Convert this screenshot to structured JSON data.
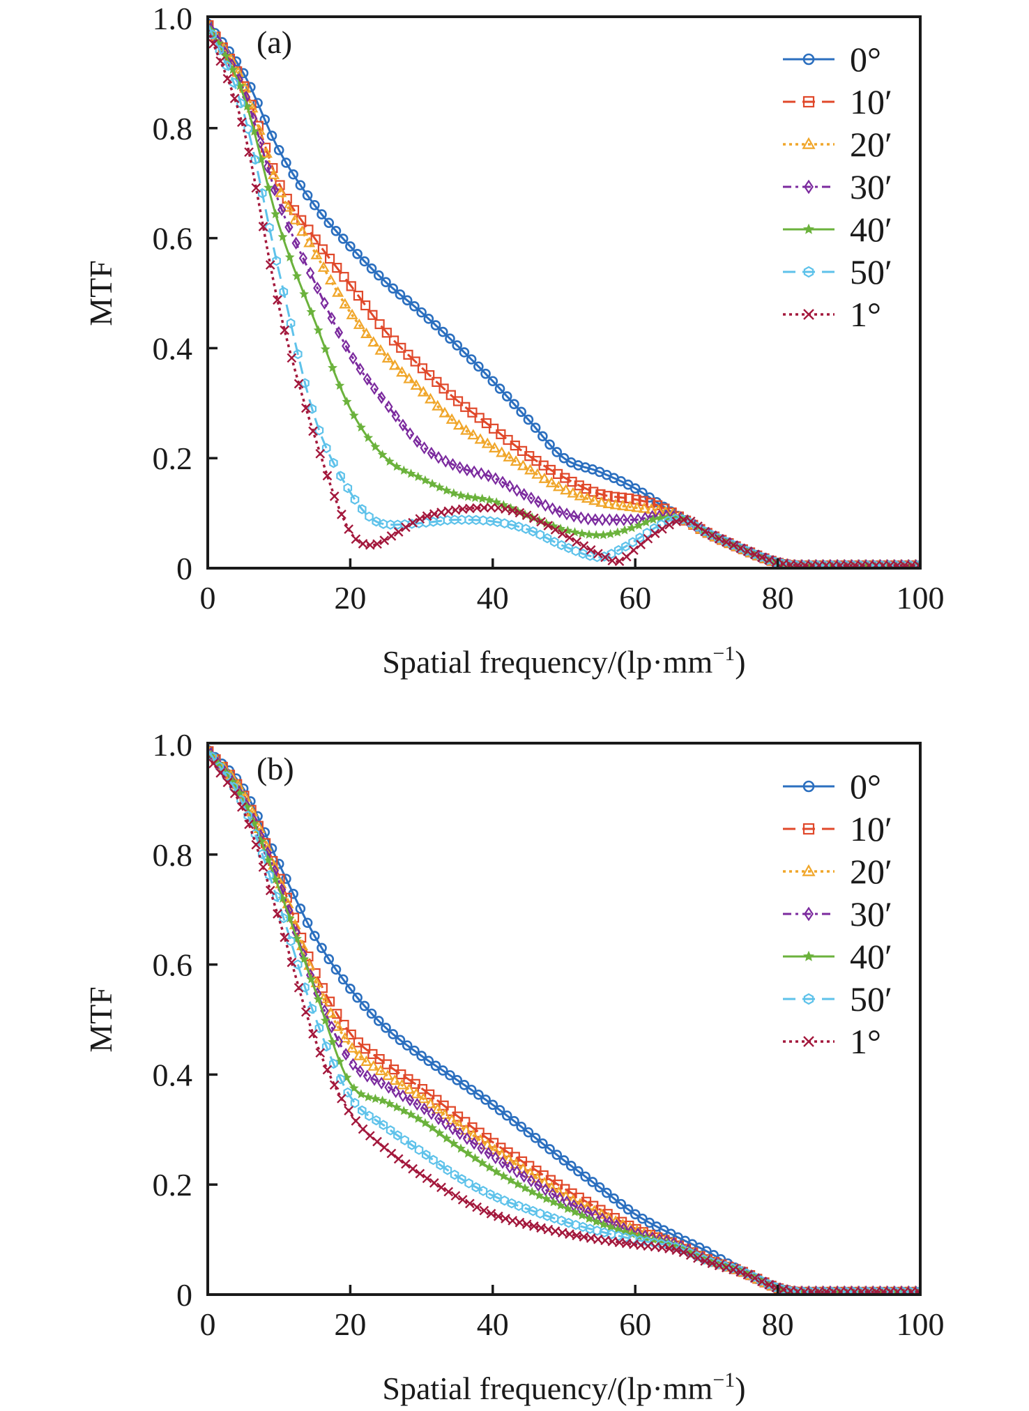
{
  "figure": {
    "panels": [
      "(a)",
      "(b)"
    ]
  },
  "chart_data": [
    {
      "type": "line",
      "panel_tag": "(a)",
      "title": "",
      "xlabel": "Spatial frequency/(lp·mm",
      "xlabel_sup": "−1",
      "xlabel_close": ")",
      "ylabel": "MTF",
      "xlim": [
        0,
        100
      ],
      "ylim": [
        0,
        1.0
      ],
      "xticks": [
        0,
        20,
        40,
        60,
        80,
        100
      ],
      "xtick_labels": [
        "0",
        "20",
        "40",
        "60",
        "80",
        "100"
      ],
      "yticks": [
        0,
        0.2,
        0.4,
        0.6,
        0.8,
        1.0
      ],
      "ytick_labels": [
        "0",
        "0.2",
        "0.4",
        "0.6",
        "0.8",
        "1.0"
      ],
      "grid": false,
      "legend_position": "top-right",
      "series": [
        {
          "name": "0°",
          "color": "#2b6fbf",
          "dash": "solid",
          "marker": "circle",
          "x": [
            0,
            5,
            10,
            15,
            20,
            25,
            30,
            35,
            40,
            45,
            50,
            55,
            60,
            63,
            66,
            70,
            75,
            80,
            83,
            90,
            100
          ],
          "y": [
            0.99,
            0.9,
            0.76,
            0.66,
            0.585,
            0.52,
            0.465,
            0.405,
            0.34,
            0.27,
            0.2,
            0.175,
            0.145,
            0.12,
            0.095,
            0.065,
            0.035,
            0.01,
            0.005,
            0.005,
            0.005
          ]
        },
        {
          "name": "10′",
          "color": "#e0482a",
          "dash": "dashed",
          "marker": "square",
          "x": [
            0,
            5,
            10,
            15,
            20,
            25,
            30,
            35,
            40,
            45,
            50,
            55,
            60,
            63,
            66,
            70,
            75,
            80,
            83,
            90,
            100
          ],
          "y": [
            0.99,
            0.88,
            0.7,
            0.6,
            0.515,
            0.43,
            0.365,
            0.305,
            0.255,
            0.205,
            0.165,
            0.135,
            0.125,
            0.115,
            0.095,
            0.065,
            0.035,
            0.01,
            0.005,
            0.005,
            0.005
          ]
        },
        {
          "name": "20′",
          "color": "#f0a62a",
          "dash": "dotted",
          "marker": "triangle",
          "x": [
            0,
            5,
            10,
            15,
            20,
            25,
            30,
            35,
            40,
            45,
            50,
            55,
            60,
            63,
            66,
            70,
            75,
            80,
            83,
            90,
            100
          ],
          "y": [
            0.99,
            0.88,
            0.69,
            0.575,
            0.465,
            0.385,
            0.323,
            0.262,
            0.22,
            0.18,
            0.143,
            0.12,
            0.11,
            0.105,
            0.095,
            0.065,
            0.035,
            0.01,
            0.005,
            0.005,
            0.005
          ]
        },
        {
          "name": "30′",
          "color": "#7b2a9e",
          "dash": "dashdot",
          "marker": "diamond",
          "x": [
            0,
            5,
            10,
            15,
            20,
            25,
            30,
            35,
            40,
            45,
            50,
            55,
            60,
            63,
            66,
            70,
            75,
            80,
            83,
            90,
            100
          ],
          "y": [
            0.99,
            0.87,
            0.665,
            0.52,
            0.39,
            0.3,
            0.223,
            0.185,
            0.165,
            0.13,
            0.1,
            0.088,
            0.088,
            0.095,
            0.093,
            0.065,
            0.035,
            0.01,
            0.005,
            0.005,
            0.005
          ]
        },
        {
          "name": "40′",
          "color": "#6bb23c",
          "dash": "solid",
          "marker": "star",
          "x": [
            0,
            5,
            10,
            15,
            20,
            25,
            30,
            35,
            40,
            45,
            50,
            55,
            60,
            63,
            66,
            70,
            75,
            80,
            83,
            90,
            100
          ],
          "y": [
            0.99,
            0.86,
            0.623,
            0.45,
            0.29,
            0.2,
            0.163,
            0.134,
            0.122,
            0.095,
            0.07,
            0.06,
            0.075,
            0.09,
            0.092,
            0.065,
            0.035,
            0.01,
            0.005,
            0.005,
            0.005
          ]
        },
        {
          "name": "50′",
          "color": "#5ec2ea",
          "dash": "dashed",
          "marker": "hexagon",
          "x": [
            0,
            5,
            10,
            15,
            20,
            23,
            26,
            30,
            35,
            40,
            45,
            50,
            55,
            58,
            60,
            63,
            66,
            70,
            75,
            80,
            83,
            90,
            100
          ],
          "y": [
            0.99,
            0.83,
            0.539,
            0.275,
            0.138,
            0.09,
            0.079,
            0.082,
            0.088,
            0.085,
            0.07,
            0.04,
            0.02,
            0.035,
            0.05,
            0.075,
            0.09,
            0.065,
            0.035,
            0.01,
            0.005,
            0.005,
            0.005
          ]
        },
        {
          "name": "1°",
          "color": "#a3183c",
          "dash": "dotted",
          "marker": "cross",
          "x": [
            0,
            5,
            10,
            15,
            20,
            23,
            26,
            30,
            35,
            40,
            45,
            50,
            55,
            57.5,
            60,
            63,
            67,
            70,
            75,
            80,
            83,
            90,
            100
          ],
          "y": [
            0.98,
            0.8,
            0.475,
            0.24,
            0.066,
            0.042,
            0.06,
            0.091,
            0.106,
            0.11,
            0.095,
            0.061,
            0.025,
            0.012,
            0.035,
            0.065,
            0.088,
            0.065,
            0.035,
            0.01,
            0.005,
            0.005,
            0.005
          ]
        }
      ]
    },
    {
      "type": "line",
      "panel_tag": "(b)",
      "title": "",
      "xlabel": "Spatial frequency/(lp·mm",
      "xlabel_sup": "−1",
      "xlabel_close": ")",
      "ylabel": "MTF",
      "xlim": [
        0,
        100
      ],
      "ylim": [
        0,
        1.0
      ],
      "xticks": [
        0,
        20,
        40,
        60,
        80,
        100
      ],
      "xtick_labels": [
        "0",
        "20",
        "40",
        "60",
        "80",
        "100"
      ],
      "yticks": [
        0,
        0.2,
        0.4,
        0.6,
        0.8,
        1.0
      ],
      "ytick_labels": [
        "0",
        "0.2",
        "0.4",
        "0.6",
        "0.8",
        "1.0"
      ],
      "grid": false,
      "legend_position": "top-right",
      "series": [
        {
          "name": "0°",
          "color": "#2b6fbf",
          "dash": "solid",
          "marker": "circle",
          "x": [
            0,
            5,
            10,
            15,
            20,
            25,
            30,
            35,
            40,
            45,
            50,
            55,
            60,
            66,
            70,
            75,
            80,
            83,
            90,
            100
          ],
          "y": [
            0.99,
            0.92,
            0.783,
            0.652,
            0.556,
            0.485,
            0.434,
            0.39,
            0.345,
            0.295,
            0.244,
            0.195,
            0.146,
            0.104,
            0.079,
            0.042,
            0.012,
            0.005,
            0.005,
            0.005
          ]
        },
        {
          "name": "10′",
          "color": "#e0482a",
          "dash": "dashed",
          "marker": "square",
          "x": [
            0,
            5,
            10,
            15,
            20,
            25,
            30,
            35,
            40,
            45,
            50,
            55,
            60,
            66,
            70,
            75,
            80,
            83,
            90,
            100
          ],
          "y": [
            0.99,
            0.91,
            0.76,
            0.588,
            0.475,
            0.42,
            0.375,
            0.325,
            0.277,
            0.235,
            0.193,
            0.155,
            0.12,
            0.09,
            0.065,
            0.042,
            0.012,
            0.005,
            0.005,
            0.005
          ]
        },
        {
          "name": "20′",
          "color": "#f0a62a",
          "dash": "dotted",
          "marker": "triangle",
          "x": [
            0,
            5,
            10,
            15,
            20,
            25,
            30,
            35,
            40,
            45,
            50,
            55,
            60,
            66,
            70,
            75,
            80,
            83,
            90,
            100
          ],
          "y": [
            0.99,
            0.91,
            0.755,
            0.574,
            0.452,
            0.4,
            0.358,
            0.31,
            0.265,
            0.222,
            0.18,
            0.147,
            0.117,
            0.09,
            0.064,
            0.042,
            0.012,
            0.005,
            0.005,
            0.005
          ]
        },
        {
          "name": "30′",
          "color": "#7b2a9e",
          "dash": "dashdot",
          "marker": "diamond",
          "x": [
            0,
            5,
            10,
            15,
            20,
            25,
            30,
            35,
            40,
            45,
            50,
            55,
            60,
            66,
            70,
            75,
            80,
            83,
            90,
            100
          ],
          "y": [
            0.99,
            0.9,
            0.75,
            0.56,
            0.425,
            0.38,
            0.341,
            0.296,
            0.252,
            0.21,
            0.171,
            0.14,
            0.112,
            0.09,
            0.063,
            0.042,
            0.012,
            0.005,
            0.005,
            0.005
          ]
        },
        {
          "name": "40′",
          "color": "#6bb23c",
          "dash": "solid",
          "marker": "star",
          "x": [
            0,
            5,
            10,
            15,
            20,
            25,
            30,
            35,
            40,
            45,
            50,
            55,
            60,
            66,
            70,
            75,
            80,
            83,
            90,
            100
          ],
          "y": [
            0.99,
            0.9,
            0.738,
            0.556,
            0.384,
            0.35,
            0.316,
            0.27,
            0.227,
            0.19,
            0.159,
            0.13,
            0.108,
            0.088,
            0.063,
            0.042,
            0.012,
            0.005,
            0.005,
            0.005
          ]
        },
        {
          "name": "50′",
          "color": "#5ec2ea",
          "dash": "dashed",
          "marker": "hexagon",
          "x": [
            0,
            5,
            10,
            15,
            20,
            25,
            30,
            35,
            40,
            45,
            50,
            55,
            60,
            66,
            70,
            75,
            80,
            83,
            90,
            100
          ],
          "y": [
            0.99,
            0.89,
            0.71,
            0.507,
            0.36,
            0.305,
            0.26,
            0.215,
            0.18,
            0.155,
            0.133,
            0.115,
            0.1,
            0.085,
            0.062,
            0.042,
            0.012,
            0.005,
            0.005,
            0.005
          ]
        },
        {
          "name": "1°",
          "color": "#a3183c",
          "dash": "dotted",
          "marker": "cross",
          "x": [
            0,
            5,
            10,
            15,
            20,
            25,
            30,
            35,
            40,
            45,
            50,
            55,
            60,
            66,
            70,
            75,
            80,
            83,
            90,
            100
          ],
          "y": [
            0.98,
            0.88,
            0.683,
            0.466,
            0.33,
            0.265,
            0.218,
            0.178,
            0.146,
            0.127,
            0.112,
            0.1,
            0.091,
            0.08,
            0.06,
            0.04,
            0.012,
            0.005,
            0.005,
            0.005
          ]
        }
      ]
    }
  ]
}
